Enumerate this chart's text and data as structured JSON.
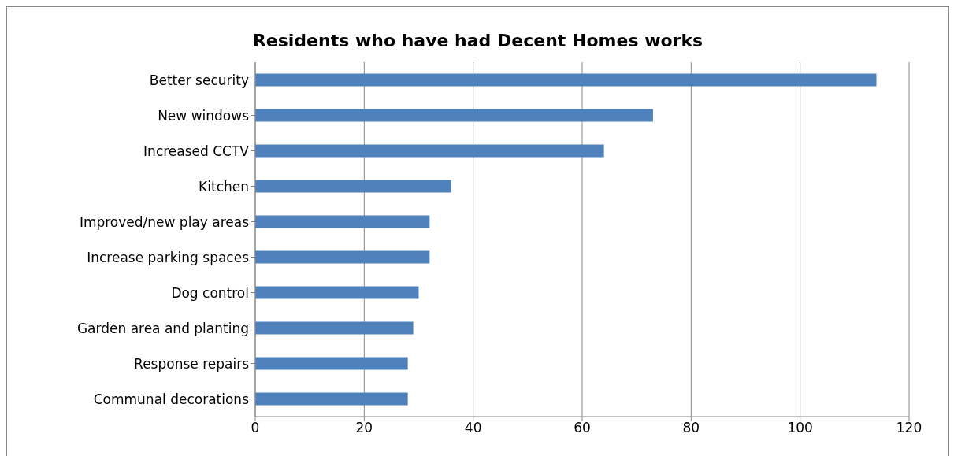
{
  "chart_data": {
    "type": "bar",
    "orientation": "horizontal",
    "title": "Residents who have had Decent Homes works",
    "categories": [
      "Better security",
      "New windows",
      "Increased CCTV",
      "Kitchen",
      "Improved/new play areas",
      "Increase parking spaces",
      "Dog control",
      "Garden area and planting",
      "Response repairs",
      "Communal decorations"
    ],
    "values": [
      114,
      73,
      64,
      36,
      32,
      32,
      30,
      29,
      28,
      28
    ],
    "color": "#4f81bd",
    "xlim": [
      0,
      120
    ],
    "xticks": [
      0,
      20,
      40,
      60,
      80,
      100,
      120
    ],
    "grid": "x"
  }
}
